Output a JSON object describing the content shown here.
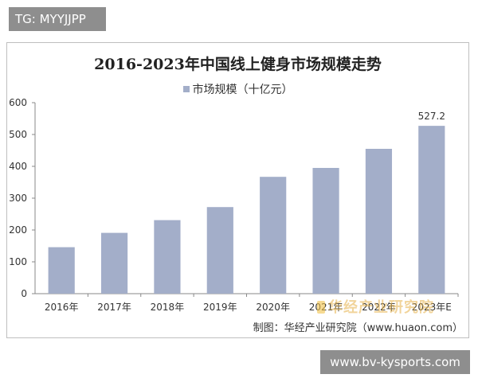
{
  "overlay": {
    "tag_label": "TG: MYYJJPP",
    "site_label": "www.bv-kysports.com"
  },
  "watermark": {
    "text": "华经产业研究院"
  },
  "source": {
    "note": "制图：华经产业研究院（www.huaon.com）"
  },
  "colors": {
    "bar": "#a3aec9",
    "axis": "#888888",
    "text": "#333333"
  },
  "chart_data": {
    "type": "bar",
    "title": "2016-2023年中国线上健身市场规模走势",
    "legend": "市场规模（十亿元）",
    "legend_position": "top-center",
    "categories": [
      "2016年",
      "2017年",
      "2018年",
      "2019年",
      "2020年",
      "2021年",
      "2022年",
      "2023年E"
    ],
    "series": [
      {
        "name": "市场规模（十亿元）",
        "values": [
          146,
          191,
          231,
          272,
          367,
          395,
          455,
          527.2
        ]
      }
    ],
    "data_labels": [
      null,
      null,
      null,
      null,
      null,
      null,
      null,
      "527.2"
    ],
    "ylim": [
      0,
      600
    ],
    "yticks": [
      "0",
      "100",
      "200",
      "300",
      "400",
      "500",
      "600"
    ],
    "grid": false
  }
}
